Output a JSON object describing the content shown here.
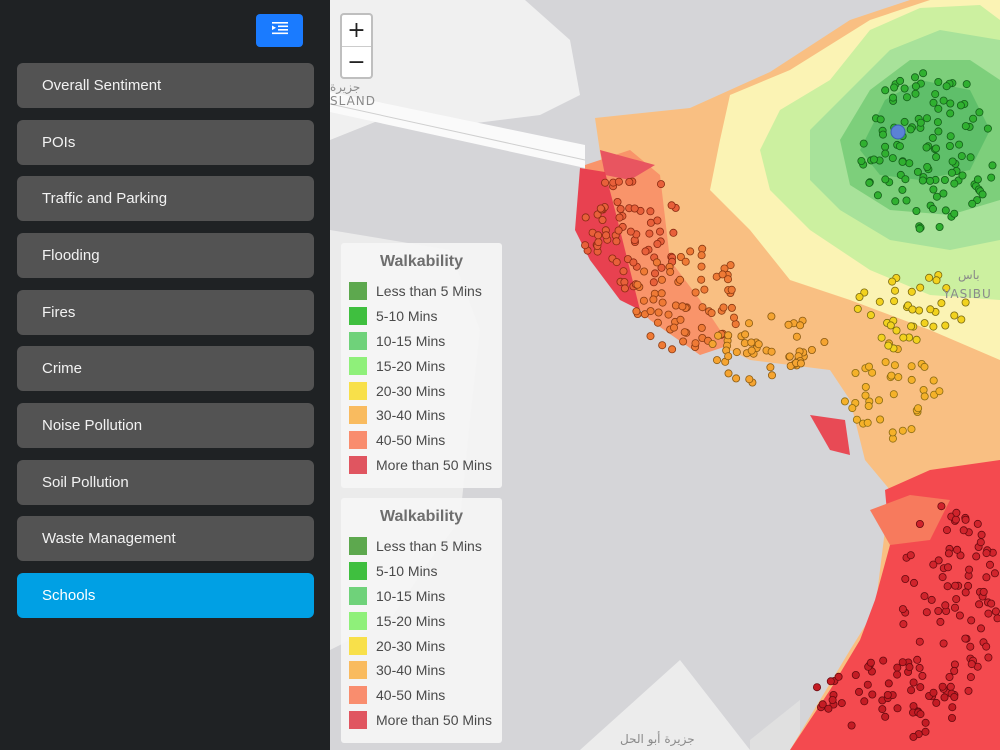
{
  "sidebar": {
    "toggle_icon": "menu-collapse-icon",
    "items": [
      {
        "label": "Overall Sentiment",
        "active": false
      },
      {
        "label": "POIs",
        "active": false
      },
      {
        "label": "Traffic and Parking",
        "active": false
      },
      {
        "label": "Flooding",
        "active": false
      },
      {
        "label": "Fires",
        "active": false
      },
      {
        "label": "Crime",
        "active": false
      },
      {
        "label": "Noise Pollution",
        "active": false
      },
      {
        "label": "Soil Pollution",
        "active": false
      },
      {
        "label": "Waste Management",
        "active": false
      },
      {
        "label": "Schools",
        "active": true
      }
    ],
    "colors": {
      "background": "#1f2224",
      "item": "#535353",
      "active": "#00a0e4",
      "toggle": "#1a7bff"
    }
  },
  "map": {
    "zoom_in_label": "+",
    "zoom_out_label": "−",
    "labels": {
      "island_top": "جزيرة",
      "island_en": "SLAND",
      "district_ar": "باس",
      "district_en": "YASIBU",
      "island_bottom": "جزيرة أبو الحل"
    },
    "legends": [
      {
        "title": "Walkability",
        "entries": [
          {
            "label": "Less than 5 Mins",
            "color": "#5da84e"
          },
          {
            "label": "5-10 Mins",
            "color": "#3fbf3f"
          },
          {
            "label": "10-15 Mins",
            "color": "#6fd27a"
          },
          {
            "label": "15-20 Mins",
            "color": "#8ff07a"
          },
          {
            "label": "20-30 Mins",
            "color": "#f8e04a"
          },
          {
            "label": "30-40 Mins",
            "color": "#f9bb5f"
          },
          {
            "label": "40-50 Mins",
            "color": "#f98d6e"
          },
          {
            "label": "More than 50 Mins",
            "color": "#e05560"
          }
        ]
      },
      {
        "title": "Walkability",
        "entries": [
          {
            "label": "Less than 5 Mins",
            "color": "#5da84e"
          },
          {
            "label": "5-10 Mins",
            "color": "#3fbf3f"
          },
          {
            "label": "10-15 Mins",
            "color": "#6fd27a"
          },
          {
            "label": "15-20 Mins",
            "color": "#8ff07a"
          },
          {
            "label": "20-30 Mins",
            "color": "#f8e04a"
          },
          {
            "label": "30-40 Mins",
            "color": "#f9bb5f"
          },
          {
            "label": "40-50 Mins",
            "color": "#f98d6e"
          },
          {
            "label": "More than 50 Mins",
            "color": "#e05560"
          }
        ]
      }
    ]
  }
}
